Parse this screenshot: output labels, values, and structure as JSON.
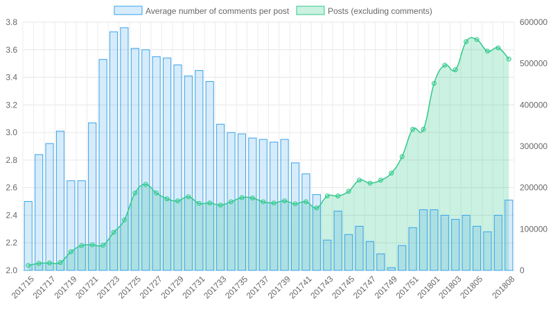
{
  "chart_data": {
    "type": "bar",
    "categories": [
      "201715",
      "201716",
      "201717",
      "201718",
      "201719",
      "201720",
      "201721",
      "201722",
      "201723",
      "201724",
      "201725",
      "201726",
      "201727",
      "201728",
      "201729",
      "201730",
      "201731",
      "201732",
      "201733",
      "201734",
      "201735",
      "201736",
      "201737",
      "201738",
      "201739",
      "201740",
      "201741",
      "201742",
      "201743",
      "201744",
      "201745",
      "201746",
      "201747",
      "201748",
      "201749",
      "201750",
      "201751",
      "201752",
      "201801",
      "201802",
      "201803",
      "201804",
      "201805",
      "201806",
      "201807",
      "201808"
    ],
    "x_tick_labels": [
      "201715",
      "201717",
      "201719",
      "201721",
      "201723",
      "201725",
      "201727",
      "201729",
      "201731",
      "201733",
      "201735",
      "201737",
      "201739",
      "201741",
      "201743",
      "201745",
      "201747",
      "201749",
      "201751",
      "201801",
      "201803",
      "201805",
      "201808"
    ],
    "series": [
      {
        "name": "Average number of comments per post",
        "type": "bar",
        "axis": "left",
        "color": "#36a2eb",
        "fill": "rgba(54,162,235,0.2)",
        "values": [
          2.5,
          2.84,
          2.92,
          3.01,
          2.65,
          2.65,
          3.07,
          3.53,
          3.73,
          3.76,
          3.61,
          3.6,
          3.55,
          3.54,
          3.49,
          3.41,
          3.45,
          3.37,
          3.06,
          3.0,
          2.99,
          2.96,
          2.95,
          2.93,
          2.95,
          2.78,
          2.7,
          2.55,
          2.22,
          2.43,
          2.26,
          2.32,
          2.21,
          2.12,
          2.02,
          2.18,
          2.31,
          2.44,
          2.44,
          2.4,
          2.37,
          2.4,
          2.32,
          2.28,
          2.4,
          2.51
        ]
      },
      {
        "name": "Posts (excluding comments)",
        "type": "area",
        "axis": "right",
        "color": "#2ec98a",
        "fill": "rgba(46,201,138,0.25)",
        "values": [
          12000,
          17000,
          18000,
          19000,
          45000,
          60000,
          62000,
          61000,
          92000,
          122000,
          187000,
          208000,
          187000,
          173000,
          168000,
          178000,
          162000,
          163000,
          158000,
          166000,
          176000,
          175000,
          166000,
          163000,
          168000,
          161000,
          166000,
          151000,
          180000,
          180000,
          191000,
          218000,
          211000,
          218000,
          235000,
          275000,
          341000,
          341000,
          452000,
          496000,
          485000,
          553000,
          558000,
          530000,
          538000,
          511000
        ]
      }
    ],
    "y_left": {
      "min": 2.0,
      "max": 3.8,
      "step": 0.2,
      "tick_labels": [
        "2.0",
        "2.2",
        "2.4",
        "2.6",
        "2.8",
        "3.0",
        "3.2",
        "3.4",
        "3.6",
        "3.8"
      ]
    },
    "y_right": {
      "min": 0,
      "max": 600000,
      "step": 100000,
      "tick_labels": [
        "0",
        "100000",
        "200000",
        "300000",
        "400000",
        "500000",
        "600000"
      ]
    },
    "grid": true,
    "legend_position": "top"
  }
}
